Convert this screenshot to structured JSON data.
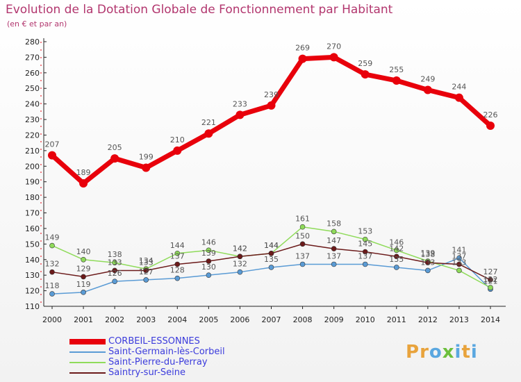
{
  "header": {
    "title": "Evolution de la Dotation Globale de Fonctionnement par Habitant",
    "subtitle": "(en € et par an)"
  },
  "logo": {
    "letters": [
      "P",
      "r",
      "o",
      "x",
      "i",
      "t",
      "i"
    ],
    "colors": [
      "#e8a33c",
      "#e8a33c",
      "#5aa7e0",
      "#6cbf3c",
      "#5aa7e0",
      "#e8a33c",
      "#5aa7e0"
    ]
  },
  "chart_data": {
    "type": "line",
    "title": "Evolution de la Dotation Globale de Fonctionnement par Habitant",
    "subtitle": "(en € et par an)",
    "xlabel": "",
    "ylabel": "",
    "x": [
      "2000",
      "2001",
      "2002",
      "2003",
      "2004",
      "2005",
      "2006",
      "2007",
      "2008",
      "2009",
      "2010",
      "2011",
      "2012",
      "2013",
      "2014"
    ],
    "ylim": [
      110,
      280
    ],
    "yticks": [
      110,
      120,
      130,
      140,
      150,
      160,
      170,
      180,
      190,
      200,
      210,
      220,
      230,
      240,
      250,
      260,
      270,
      280
    ],
    "grid": false,
    "legend_position": "bottom-left",
    "series": [
      {
        "name": "CORBEIL-ESSONNES",
        "color": "#e8000b",
        "values": [
          207,
          189,
          205,
          199,
          210,
          221,
          233,
          239,
          269,
          270,
          259,
          255,
          249,
          244,
          226
        ]
      },
      {
        "name": "Saint-Germain-lès-Corbeil",
        "color": "#5a9bd5",
        "values": [
          118,
          119,
          126,
          127,
          128,
          130,
          132,
          135,
          137,
          137,
          137,
          135,
          133,
          141,
          121
        ]
      },
      {
        "name": "Saint-Pierre-du-Perray",
        "color": "#8fdb5a",
        "values": [
          149,
          140,
          138,
          134,
          144,
          146,
          142,
          144,
          161,
          158,
          153,
          146,
          139,
          133,
          122
        ]
      },
      {
        "name": "Saintry-sur-Seine",
        "color": "#6b1a1a",
        "values": [
          132,
          129,
          133,
          133,
          137,
          139,
          142,
          144,
          150,
          147,
          145,
          142,
          138,
          137,
          127
        ]
      }
    ]
  }
}
